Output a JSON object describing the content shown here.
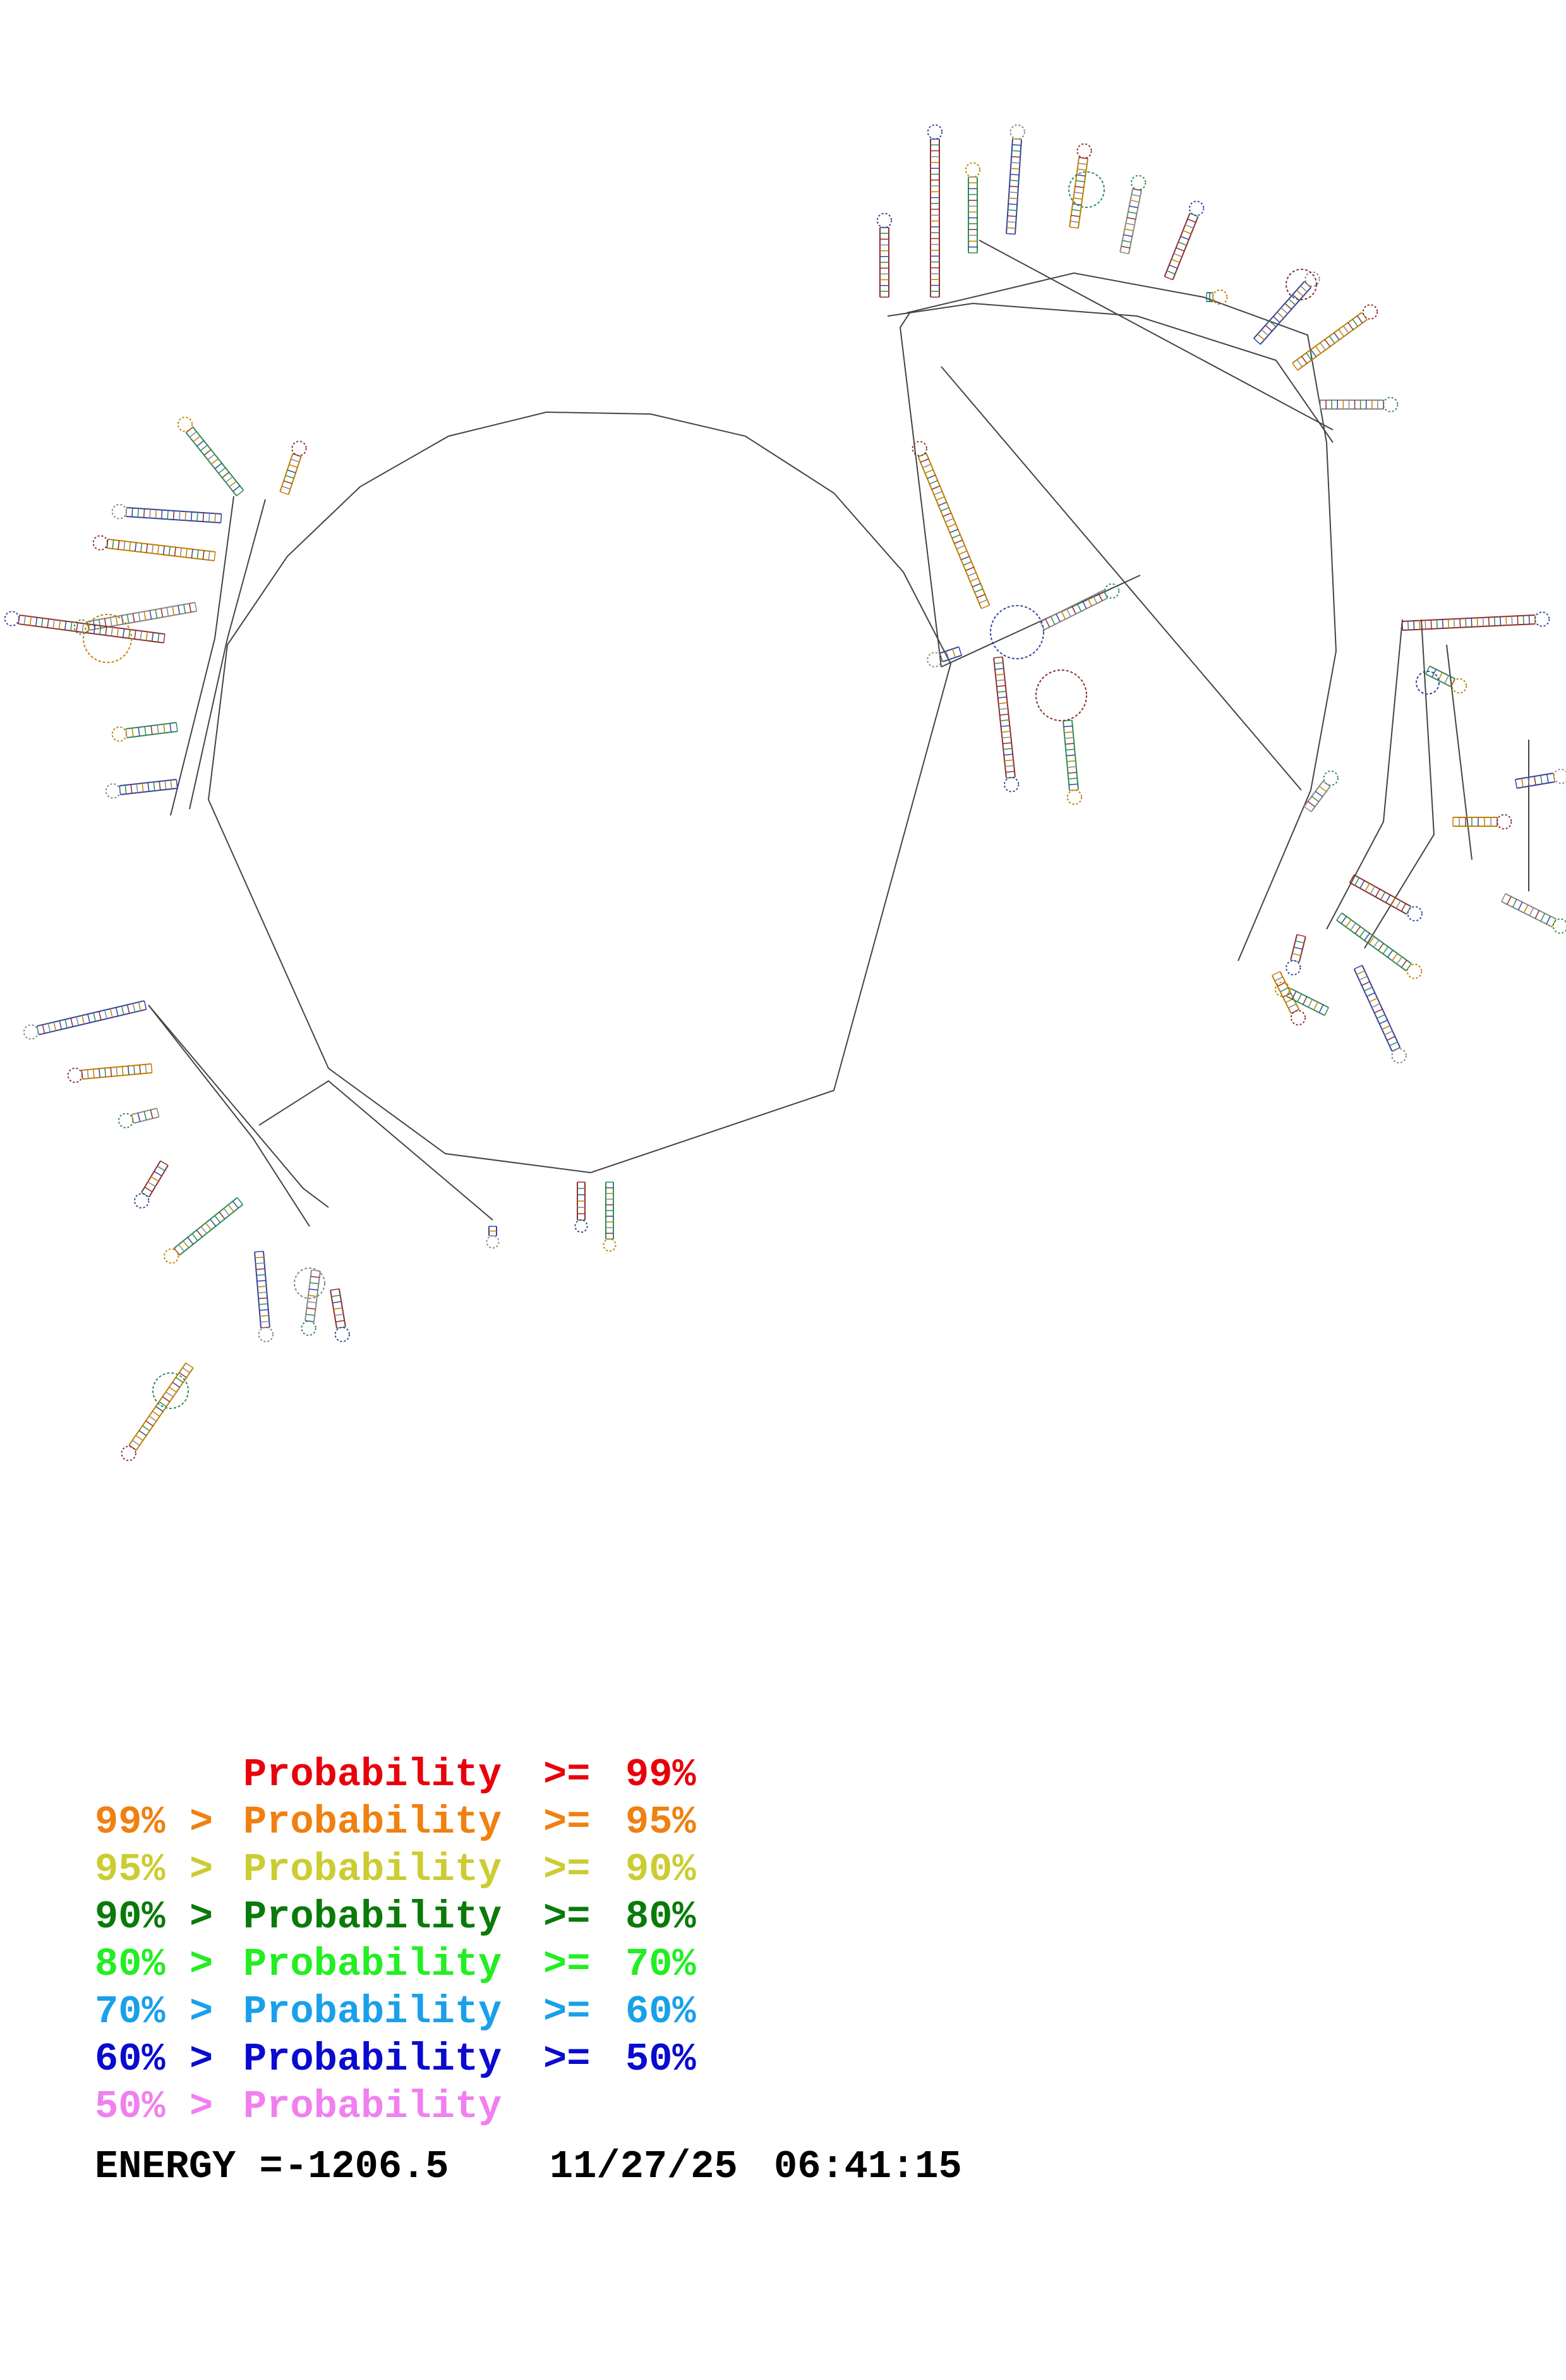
{
  "legend": {
    "rows": [
      {
        "lower": "",
        "gt": "",
        "label": "Probability",
        "ge": ">=",
        "upper": "99%",
        "color": "#e8000b"
      },
      {
        "lower": "99%",
        "gt": ">",
        "label": "Probability",
        "ge": ">=",
        "upper": "95%",
        "color": "#f08010"
      },
      {
        "lower": "95%",
        "gt": ">",
        "label": "Probability",
        "ge": ">=",
        "upper": "90%",
        "color": "#cccc33"
      },
      {
        "lower": "90%",
        "gt": ">",
        "label": "Probability",
        "ge": ">=",
        "upper": "80%",
        "color": "#0a7a0a"
      },
      {
        "lower": "80%",
        "gt": ">",
        "label": "Probability",
        "ge": ">=",
        "upper": "70%",
        "color": "#22ee22"
      },
      {
        "lower": "70%",
        "gt": ">",
        "label": "Probability",
        "ge": ">=",
        "upper": "60%",
        "color": "#1aa0ea"
      },
      {
        "lower": "60%",
        "gt": ">",
        "label": "Probability",
        "ge": ">=",
        "upper": "50%",
        "color": "#0a0ad0"
      },
      {
        "lower": "50%",
        "gt": ">",
        "label": "Probability",
        "ge": "",
        "upper": "",
        "color": "#f080f0"
      }
    ]
  },
  "footer": {
    "energy_label": "ENERGY =",
    "energy_value": "-1206.5",
    "date": "11/27/25",
    "time": "06:41:15"
  },
  "diagram": {
    "line_color": "#444444",
    "base_colors": [
      "#8b2e2e",
      "#2e8b57",
      "#334499",
      "#c08000",
      "#888888"
    ]
  }
}
